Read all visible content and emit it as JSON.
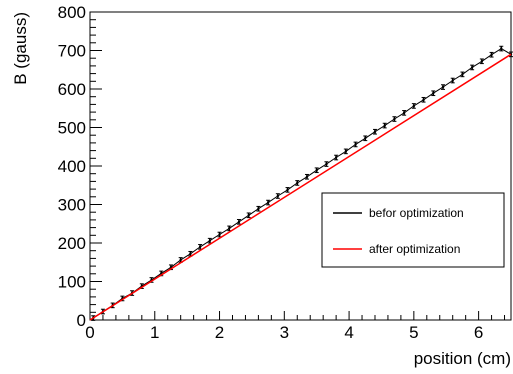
{
  "chart_data": {
    "type": "line",
    "xlabel": "position (cm)",
    "ylabel": "B (gauss)",
    "xlim": [
      0,
      6.5
    ],
    "ylim": [
      0,
      800
    ],
    "x_ticks": [
      "0",
      "1",
      "2",
      "3",
      "4",
      "5",
      "6"
    ],
    "y_ticks": [
      "0",
      "100",
      "200",
      "300",
      "400",
      "500",
      "600",
      "700",
      "800"
    ],
    "grid": false,
    "legend_position": "right-middle",
    "series": [
      {
        "name": "befor optimization",
        "color": "#000000",
        "style": "points-with-error-bars",
        "x": [
          0.05,
          0.2,
          0.35,
          0.5,
          0.65,
          0.8,
          0.95,
          1.1,
          1.25,
          1.4,
          1.55,
          1.7,
          1.85,
          2.0,
          2.15,
          2.3,
          2.45,
          2.6,
          2.75,
          2.9,
          3.05,
          3.2,
          3.35,
          3.5,
          3.65,
          3.8,
          3.95,
          4.1,
          4.25,
          4.4,
          4.55,
          4.7,
          4.85,
          5.0,
          5.15,
          5.3,
          5.45,
          5.6,
          5.75,
          5.9,
          6.05,
          6.2,
          6.35,
          6.5
        ],
        "y": [
          5,
          22,
          38,
          56,
          70,
          88,
          104,
          121,
          137,
          156,
          172,
          190,
          206,
          222,
          238,
          255,
          272,
          289,
          305,
          322,
          338,
          356,
          372,
          389,
          405,
          422,
          438,
          456,
          472,
          489,
          505,
          522,
          538,
          556,
          572,
          589,
          605,
          622,
          638,
          656,
          672,
          689,
          705,
          690
        ],
        "yerr": 6
      },
      {
        "name": "after optimization",
        "color": "#ff0000",
        "style": "line",
        "x": [
          0,
          6.5
        ],
        "y": [
          0,
          690
        ]
      }
    ]
  }
}
